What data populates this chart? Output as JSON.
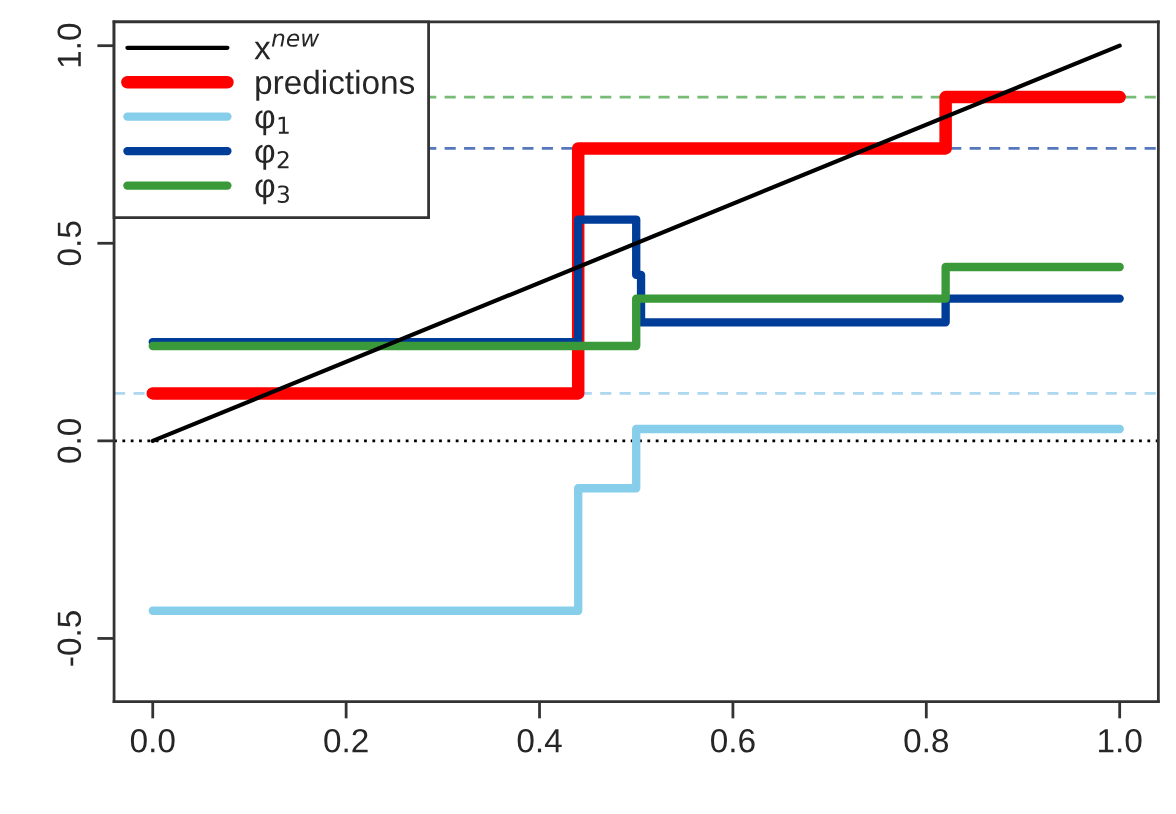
{
  "chart_data": {
    "type": "step",
    "xlim": [
      -0.04,
      1.04
    ],
    "ylim": [
      -0.66,
      1.06
    ],
    "xticks": [
      {
        "value": 0,
        "label": "0.0"
      },
      0.2,
      0.4,
      0.6,
      0.8,
      {
        "value": 1,
        "label": "1.0"
      }
    ],
    "yticks": [
      -0.5,
      {
        "value": 0,
        "label": "0.0"
      },
      0.5,
      {
        "value": 1,
        "label": "1.0"
      }
    ],
    "grid": false,
    "legend": "top left",
    "series": [
      {
        "name": "x$^{new}$",
        "type": "line",
        "color": "#000000",
        "x": [
          0,
          1
        ],
        "values": [
          0,
          1
        ]
      },
      {
        "name": "predictions",
        "color": "#ff0000",
        "x": [
          0,
          0.44,
          0.82,
          1.0
        ],
        "values": [
          0.12,
          0.74,
          0.87,
          0.87
        ]
      },
      {
        "name": "φ$_{1}$",
        "color": "#87ceeb",
        "x": [
          0,
          0.44,
          0.5,
          1.0
        ],
        "values": [
          -0.43,
          -0.12,
          0.03,
          0.03
        ]
      },
      {
        "name": "φ$_{2}$",
        "color": "#003d99",
        "x": [
          0,
          0.44,
          0.5,
          0.505,
          0.82,
          1.0
        ],
        "values": [
          0.25,
          0.56,
          0.42,
          0.3,
          0.36,
          0.36
        ]
      },
      {
        "name": "φ$_{3}$",
        "color": "#3a9a3a",
        "x": [
          0,
          0.5,
          0.82,
          1.0
        ],
        "values": [
          0.24,
          0.36,
          0.44,
          0.44
        ]
      }
    ],
    "ref_lines": [
      {
        "axis": "y",
        "value": 0,
        "color": "#000000",
        "line_style": "dotted"
      },
      {
        "axis": "y",
        "value": 0.12,
        "color": "#add8f0",
        "line_style": "dashed"
      },
      {
        "axis": "y",
        "value": 0.74,
        "color": "#5577bb",
        "line_style": "dashed"
      },
      {
        "axis": "y",
        "value": 0.87,
        "color": "#77bb77",
        "line_style": "dashed"
      }
    ]
  }
}
